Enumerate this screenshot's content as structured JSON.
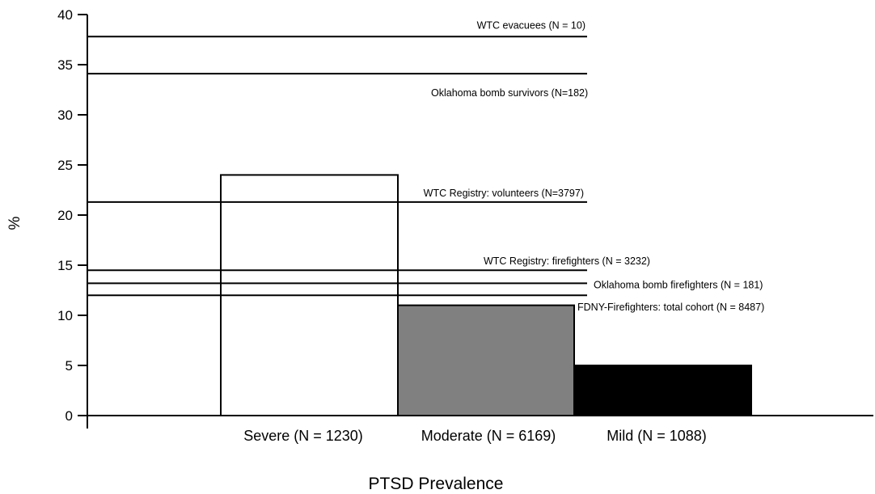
{
  "chart_data": {
    "type": "bar",
    "title": "",
    "xlabel": "PTSD Prevalence",
    "ylabel": "%",
    "ylim": [
      0,
      40
    ],
    "yticks": [
      0,
      5,
      10,
      15,
      20,
      25,
      30,
      35,
      40
    ],
    "grid": false,
    "categories": [
      "Severe (N = 1230)",
      "Moderate (N = 6169)",
      "Mild (N = 1088)"
    ],
    "values": [
      24,
      11,
      5
    ],
    "bar_colors": [
      "#ffffff",
      "#808080",
      "#000000"
    ],
    "reference_lines": [
      {
        "label": "WTC evacuees (N = 10)",
        "value": 37.8
      },
      {
        "label": "Oklahoma bomb survivors (N=182)",
        "value": 34.1
      },
      {
        "label": "WTC Registry: volunteers (N=3797)",
        "value": 21.3
      },
      {
        "label": "WTC Registry: firefighters (N = 3232)",
        "value": 14.5
      },
      {
        "label": "Oklahoma bomb firefighters (N = 181)",
        "value": 13.2
      },
      {
        "label": "FDNY-Firefighters: total cohort (N = 8487)",
        "value": 12.0
      }
    ]
  }
}
